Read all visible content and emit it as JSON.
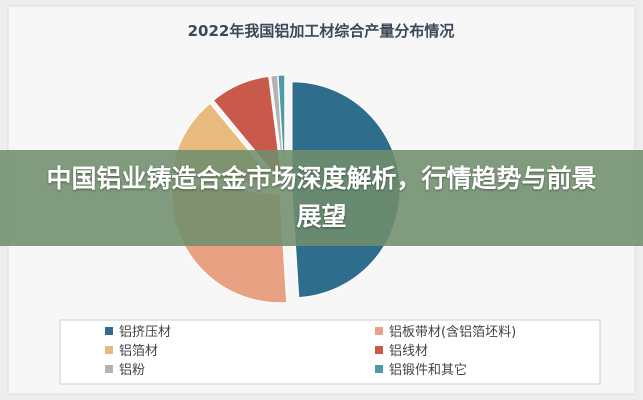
{
  "chart_data": {
    "type": "pie",
    "title": "2022年我国铝加工材综合产量分布情况",
    "categories": [
      "铝挤压材",
      "铝板带材(含铝箔坯料)",
      "铝箔材",
      "铝线材",
      "铝粉",
      "铝锻件和其它"
    ],
    "values": [
      49,
      28,
      12,
      9,
      1,
      1
    ],
    "colors": [
      "#2f6d8c",
      "#e8a283",
      "#e6bb7d",
      "#c95a4b",
      "#b3b3b3",
      "#4d9ba6"
    ]
  },
  "overlay": {
    "headline": "中国铝业铸造合金市场深度解析，行情趋势与前景展望"
  }
}
